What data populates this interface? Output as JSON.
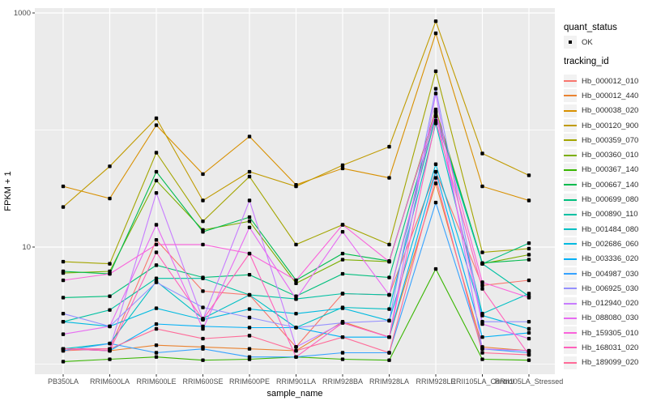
{
  "chart_data": {
    "type": "line",
    "title": "",
    "xlabel": "sample_name",
    "ylabel": "FPKM + 1",
    "y_scale": "log10",
    "y_breaks": [
      10,
      1000
    ],
    "y_tick_labels": [
      "10",
      "1000"
    ],
    "y_minor_breaks": [
      1,
      100
    ],
    "ylim": [
      0.82,
      1100
    ],
    "grid": "on",
    "panel_background": "#ebebeb",
    "grid_color": "#ffffff",
    "point_color": "#000000",
    "axis_text_color": "#4d4d4d",
    "legend_position": "right",
    "categories": [
      "PB350LA",
      "RRIM600LA",
      "RRIM600LE",
      "RRIM600SE",
      "RRIM600PE",
      "RRIM901LA",
      "RRIM928BA",
      "RRIM928LA",
      "RRIM928LE",
      "RRII105LA_Control",
      "RRII105LA_Stressed"
    ],
    "legend": {
      "quant_status": {
        "title": "quant_status",
        "items": [
          "OK"
        ]
      },
      "tracking_id": {
        "title": "tracking_id"
      }
    },
    "series": [
      {
        "name": "Hb_000012_010",
        "color": "#F8766D",
        "values": [
          1.3,
          1.35,
          11.5,
          4.2,
          3.9,
          1.4,
          4.0,
          3.9,
          44,
          4.7,
          5.2
        ]
      },
      {
        "name": "Hb_000012_440",
        "color": "#EA8331",
        "values": [
          1.35,
          1.3,
          1.45,
          1.4,
          1.35,
          1.3,
          2.3,
          1.7,
          35,
          1.4,
          1.3
        ]
      },
      {
        "name": "Hb_000038_020",
        "color": "#D89000",
        "values": [
          33,
          26,
          110,
          42,
          88,
          34,
          47,
          39,
          670,
          33,
          25
        ]
      },
      {
        "name": "Hb_000120_900",
        "color": "#C09B00",
        "values": [
          22,
          49,
          126,
          25,
          44,
          33,
          50,
          72,
          850,
          63,
          41
        ]
      },
      {
        "name": "Hb_000359_070",
        "color": "#A3A500",
        "values": [
          7.5,
          7.2,
          64,
          16.6,
          40,
          10.5,
          15.5,
          10.5,
          318,
          9.0,
          9.7
        ]
      },
      {
        "name": "Hb_000360_010",
        "color": "#7CAE00",
        "values": [
          6.0,
          6.2,
          37,
          14,
          16.6,
          4.9,
          7.8,
          7.5,
          150,
          7.2,
          8.6
        ]
      },
      {
        "name": "Hb_000367_140",
        "color": "#39B600",
        "values": [
          1.05,
          1.1,
          1.15,
          1.08,
          1.1,
          1.15,
          1.1,
          1.08,
          6.5,
          1.1,
          1.08
        ]
      },
      {
        "name": "Hb_000667_140",
        "color": "#00BB4E",
        "values": [
          6.2,
          5.9,
          44,
          13.5,
          18,
          5.2,
          8.8,
          7.6,
          142,
          7.3,
          7.8
        ]
      },
      {
        "name": "Hb_000699_080",
        "color": "#00BF7D",
        "values": [
          3.7,
          3.8,
          7.0,
          5.5,
          5.8,
          3.8,
          5.9,
          5.5,
          135,
          7.2,
          10.8
        ]
      },
      {
        "name": "Hb_000890_110",
        "color": "#00C1A3",
        "values": [
          2.3,
          2.9,
          5.4,
          5.4,
          3.9,
          3.6,
          4.0,
          3.9,
          130,
          7.2,
          3.8
        ]
      },
      {
        "name": "Hb_001484_080",
        "color": "#00BFC4",
        "values": [
          1.35,
          1.5,
          5.1,
          2.45,
          3.9,
          2.05,
          3.05,
          2.95,
          114,
          2.7,
          4.0
        ]
      },
      {
        "name": "Hb_002686_060",
        "color": "#00BAE0",
        "values": [
          2.3,
          2.1,
          3.0,
          2.4,
          2.95,
          2.7,
          3.0,
          2.35,
          51,
          2.6,
          2.0
        ]
      },
      {
        "name": "Hb_003336_020",
        "color": "#00B0F6",
        "values": [
          1.35,
          1.3,
          2.2,
          2.1,
          2.05,
          2.05,
          1.7,
          1.7,
          44,
          1.7,
          1.85
        ]
      },
      {
        "name": "Hb_004987_030",
        "color": "#35A2FF",
        "values": [
          1.3,
          1.5,
          1.25,
          1.35,
          1.15,
          1.15,
          1.25,
          1.25,
          24,
          1.35,
          1.25
        ]
      },
      {
        "name": "Hb_006925_030",
        "color": "#9590FF",
        "values": [
          2.7,
          2.1,
          5.0,
          3.05,
          2.5,
          2.05,
          2.25,
          2.35,
          225,
          2.3,
          2.3
        ]
      },
      {
        "name": "Hb_012940_020",
        "color": "#C77CFF",
        "values": [
          1.35,
          1.35,
          29,
          2.4,
          25,
          1.4,
          2.25,
          1.7,
          205,
          1.35,
          1.3
        ]
      },
      {
        "name": "Hb_088080_030",
        "color": "#E76BF3",
        "values": [
          1.8,
          2.1,
          15.5,
          2.0,
          14.7,
          3.6,
          13.5,
          3.9,
          142,
          2.2,
          1.65
        ]
      },
      {
        "name": "Hb_159305_010",
        "color": "#FA62DB",
        "values": [
          5.2,
          5.9,
          10.5,
          10.5,
          8.8,
          5.2,
          15.5,
          7.5,
          145,
          5.0,
          3.7
        ]
      },
      {
        "name": "Hb_168031_020",
        "color": "#FF62BC",
        "values": [
          1.35,
          1.3,
          9.0,
          2.4,
          8.8,
          1.15,
          2.25,
          1.7,
          120,
          4.4,
          1.2
        ]
      },
      {
        "name": "Hb_189099_020",
        "color": "#FF6A98",
        "values": [
          1.35,
          1.35,
          2.0,
          1.65,
          1.75,
          1.3,
          1.7,
          1.25,
          39,
          1.25,
          1.2
        ]
      }
    ]
  }
}
